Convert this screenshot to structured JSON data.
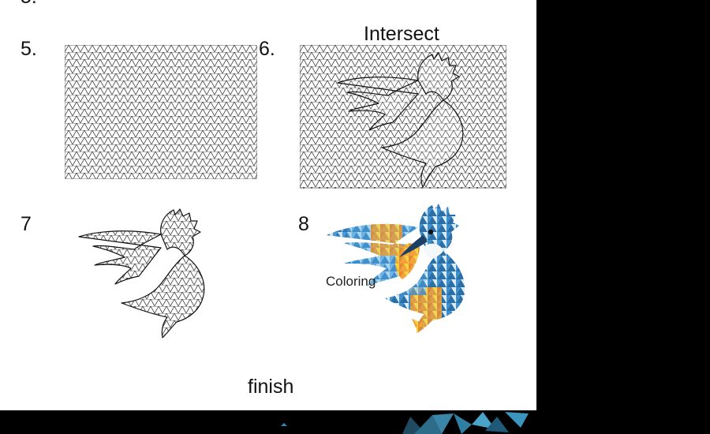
{
  "steps": {
    "step_partial": "5.",
    "step5": "5.",
    "step6": "6.",
    "step7": "7",
    "step8": "8"
  },
  "labels": {
    "intersect": "Intersect",
    "coloring": "Coloring",
    "finish": "finish"
  },
  "colors": {
    "background": "#ffffff",
    "frame": "#000000",
    "pattern_line": "#444444",
    "bird_palette": [
      "#2a6fa8",
      "#3f8fcc",
      "#6fb2e0",
      "#a9d4ee",
      "#d7ecf7",
      "#f2a33a",
      "#e58b2a",
      "#f7d23f",
      "#1c3f66"
    ]
  }
}
